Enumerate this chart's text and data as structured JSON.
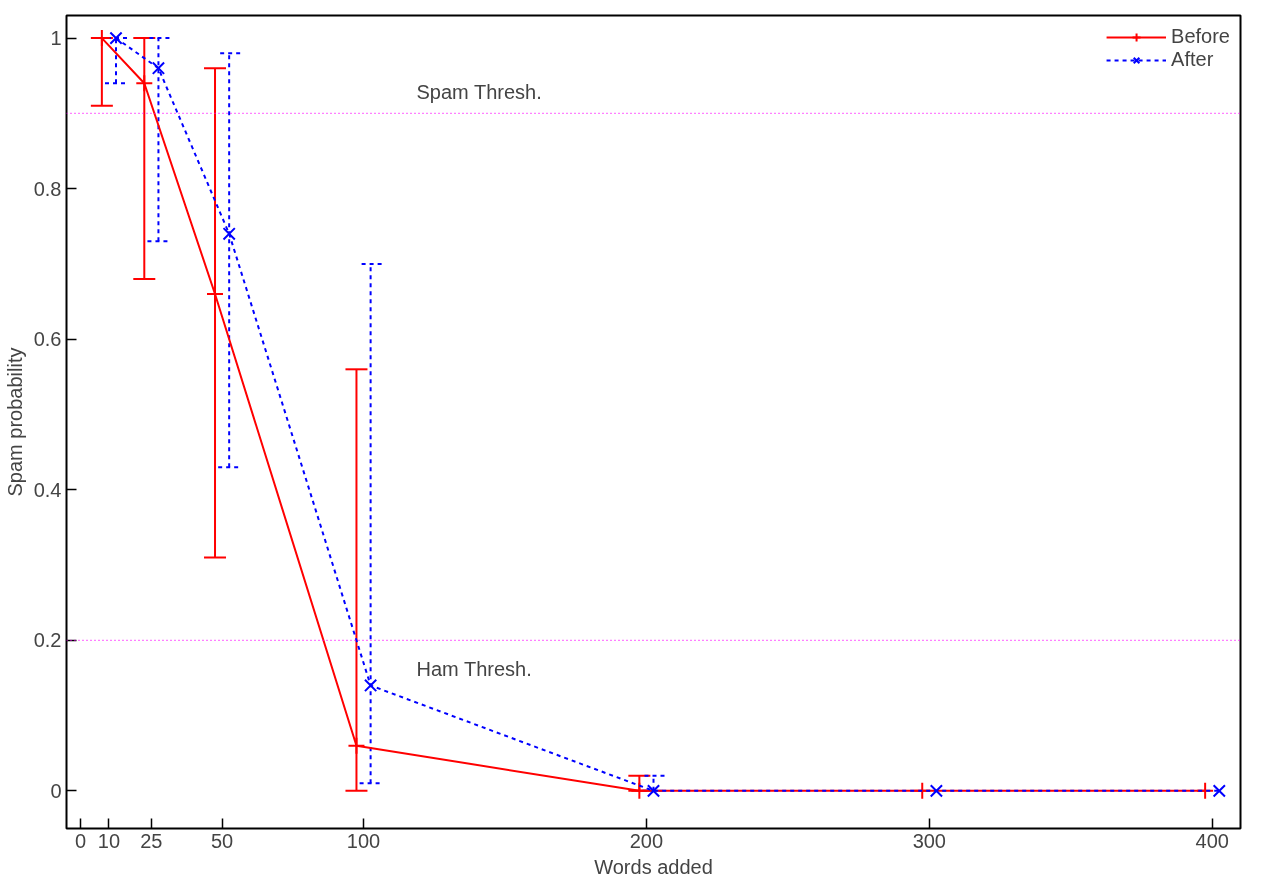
{
  "chart_data": {
    "type": "line",
    "xlabel": "Words added",
    "ylabel": "Spam probability",
    "xlim": [
      -5,
      410
    ],
    "ylim": [
      -0.05,
      1.03
    ],
    "xticks": [
      0,
      10,
      25,
      50,
      100,
      200,
      300,
      400
    ],
    "yticks": [
      0,
      0.2,
      0.4,
      0.6,
      0.8,
      1
    ],
    "grid": false,
    "legend": "top right",
    "series": [
      {
        "name": "Before",
        "color": "#ff0000",
        "line_style": "solid",
        "marker": "cross",
        "x": [
          7.5,
          22.5,
          47.5,
          97.5,
          197.5,
          297.5,
          397.5
        ],
        "values": [
          1.0,
          0.94,
          0.66,
          0.06,
          0,
          0,
          0
        ],
        "errors": [
          [
            0.91,
            1.0
          ],
          [
            0.68,
            1.0
          ],
          [
            0.31,
            0.96
          ],
          [
            0,
            0.56
          ],
          [
            0,
            0.02
          ],
          null,
          null
        ]
      },
      {
        "name": "After",
        "color": "#0000ff",
        "line_style": "dashed",
        "marker": "x",
        "x": [
          12.5,
          27.5,
          52.5,
          102.5,
          202.5,
          302.5,
          402.5
        ],
        "values": [
          1.0,
          0.96,
          0.74,
          0.14,
          0,
          0,
          0
        ],
        "errors": [
          [
            0.94,
            1.0
          ],
          [
            0.73,
            1.0
          ],
          [
            0.43,
            0.98
          ],
          [
            0.01,
            0.7
          ],
          [
            0,
            0.02
          ],
          null,
          null
        ]
      }
    ],
    "ref_lines": [
      {
        "axis": "y",
        "value": 0.9,
        "label": "Spam Thresh.",
        "color": "#ff00ff",
        "line_style": "dotted"
      },
      {
        "axis": "y",
        "value": 0.2,
        "label": "Ham Thresh.",
        "color": "#ff00ff",
        "line_style": "dotted"
      }
    ]
  }
}
